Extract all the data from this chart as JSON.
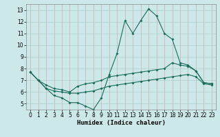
{
  "xlabel": "Humidex (Indice chaleur)",
  "bg_color": "#cce8e8",
  "grid_color": "#b8d8d8",
  "line_color": "#1a6b5a",
  "xlim": [
    -0.5,
    23.5
  ],
  "ylim": [
    4.5,
    13.5
  ],
  "yticks": [
    5,
    6,
    7,
    8,
    9,
    10,
    11,
    12,
    13
  ],
  "xticks": [
    0,
    1,
    2,
    3,
    4,
    5,
    6,
    7,
    8,
    9,
    10,
    11,
    12,
    13,
    14,
    15,
    16,
    17,
    18,
    19,
    20,
    21,
    22,
    23
  ],
  "line1_x": [
    0,
    1,
    2,
    3,
    4,
    5,
    6,
    7,
    8,
    9,
    10,
    11,
    12,
    13,
    14,
    15,
    16,
    17,
    18,
    19,
    20,
    21,
    22,
    23
  ],
  "line1_y": [
    7.7,
    7.0,
    6.3,
    5.7,
    5.5,
    5.1,
    5.1,
    4.8,
    4.5,
    5.5,
    7.5,
    9.3,
    12.1,
    11.0,
    12.1,
    13.1,
    12.5,
    11.0,
    10.5,
    8.5,
    8.3,
    7.8,
    6.8,
    6.7
  ],
  "line2_x": [
    0,
    1,
    2,
    3,
    4,
    5,
    6,
    7,
    8,
    9,
    10,
    11,
    12,
    13,
    14,
    15,
    16,
    17,
    18,
    19,
    20,
    21,
    22,
    23
  ],
  "line2_y": [
    7.7,
    7.0,
    6.6,
    6.3,
    6.2,
    6.0,
    6.5,
    6.7,
    6.8,
    7.0,
    7.3,
    7.4,
    7.5,
    7.6,
    7.7,
    7.8,
    7.9,
    8.0,
    8.5,
    8.3,
    8.2,
    7.8,
    6.8,
    6.7
  ],
  "line3_x": [
    0,
    1,
    2,
    3,
    4,
    5,
    6,
    7,
    8,
    9,
    10,
    11,
    12,
    13,
    14,
    15,
    16,
    17,
    18,
    19,
    20,
    21,
    22,
    23
  ],
  "line3_y": [
    7.7,
    7.0,
    6.3,
    6.1,
    6.0,
    5.9,
    5.9,
    6.0,
    6.1,
    6.3,
    6.5,
    6.6,
    6.7,
    6.8,
    6.9,
    7.0,
    7.1,
    7.2,
    7.3,
    7.4,
    7.5,
    7.3,
    6.7,
    6.6
  ]
}
